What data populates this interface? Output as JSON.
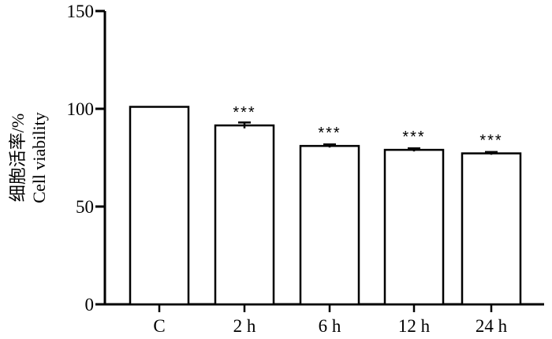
{
  "chart_data": {
    "type": "bar",
    "title": "",
    "xlabel": "",
    "ylabel_lines": [
      "细胞活率/%",
      "Cell viability"
    ],
    "categories": [
      "C",
      "2 h",
      "6 h",
      "12 h",
      "24 h"
    ],
    "values": [
      101,
      91.5,
      81,
      79,
      77.2
    ],
    "errors": [
      0,
      1.5,
      0.8,
      0.8,
      0.7
    ],
    "significance": [
      "",
      "***",
      "***",
      "***",
      "***"
    ],
    "ylim": [
      0,
      150
    ],
    "yticks": [
      0,
      50,
      100,
      150
    ],
    "grid": false,
    "legend": "none",
    "colors": {
      "bar_fill": "#ffffff",
      "bar_stroke": "#000000",
      "axis": "#000000"
    }
  }
}
